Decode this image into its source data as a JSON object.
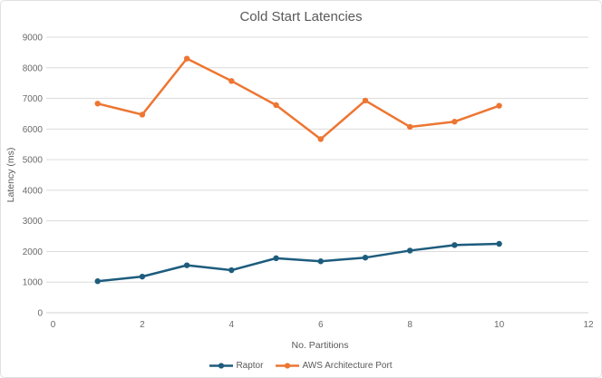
{
  "chart_data": {
    "type": "line",
    "title": "Cold Start Latencies",
    "xlabel": "No. Partitions",
    "ylabel": "Latency (ms)",
    "xlim": [
      0,
      12
    ],
    "ylim": [
      0,
      9000
    ],
    "x_ticks": [
      0,
      2,
      4,
      6,
      8,
      10,
      12
    ],
    "y_ticks": [
      0,
      1000,
      2000,
      3000,
      4000,
      5000,
      6000,
      7000,
      8000,
      9000
    ],
    "grid": "horizontal-only",
    "legend_position": "bottom-center",
    "x": [
      1,
      2,
      3,
      4,
      5,
      6,
      7,
      8,
      9,
      10
    ],
    "series": [
      {
        "name": "Raptor",
        "color": "#1d5c7d",
        "marker": "circle",
        "values": [
          1030,
          1180,
          1550,
          1390,
          1780,
          1680,
          1800,
          2030,
          2210,
          2250
        ]
      },
      {
        "name": "AWS Architecture Port",
        "color": "#ed7632",
        "marker": "circle",
        "values": [
          6830,
          6470,
          8300,
          7570,
          6780,
          5670,
          6930,
          6070,
          6240,
          6760
        ]
      }
    ]
  },
  "styles": {
    "grid_color": "#dcdcdc",
    "axis_line_color": "#d2d2d2",
    "tick_text_color": "#6a6a6a",
    "title_color": "#595959"
  }
}
